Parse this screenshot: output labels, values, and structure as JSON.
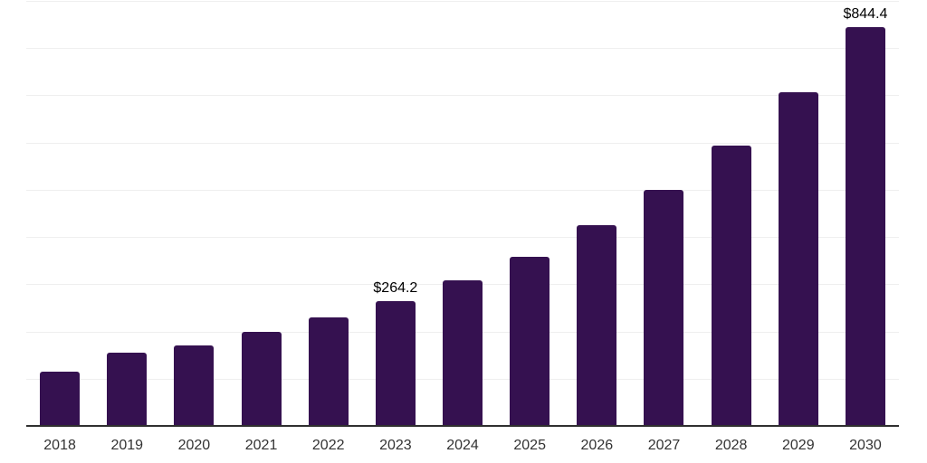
{
  "chart_data": {
    "type": "bar",
    "title": "",
    "xlabel": "",
    "ylabel": "",
    "categories": [
      "2018",
      "2019",
      "2020",
      "2021",
      "2022",
      "2023",
      "2024",
      "2025",
      "2026",
      "2027",
      "2028",
      "2029",
      "2030"
    ],
    "values": [
      114,
      156,
      170,
      199,
      230,
      264.2,
      308,
      359,
      425,
      500,
      594,
      707,
      844.4
    ],
    "labeled_points": [
      {
        "category": "2023",
        "label": "$264.2"
      },
      {
        "category": "2030",
        "label": "$844.4"
      }
    ],
    "ylim": [
      0,
      900
    ],
    "gridline_step": 100,
    "grid": "horizontal-only",
    "legend": "none",
    "y_axis_tick_labels_visible": false,
    "colors": {
      "bar": "#351150",
      "data_label": "#000000",
      "tick_label": "#333333",
      "gridline": "#efefef",
      "axis_line": "#2f2f2f",
      "background": "#ffffff"
    }
  }
}
